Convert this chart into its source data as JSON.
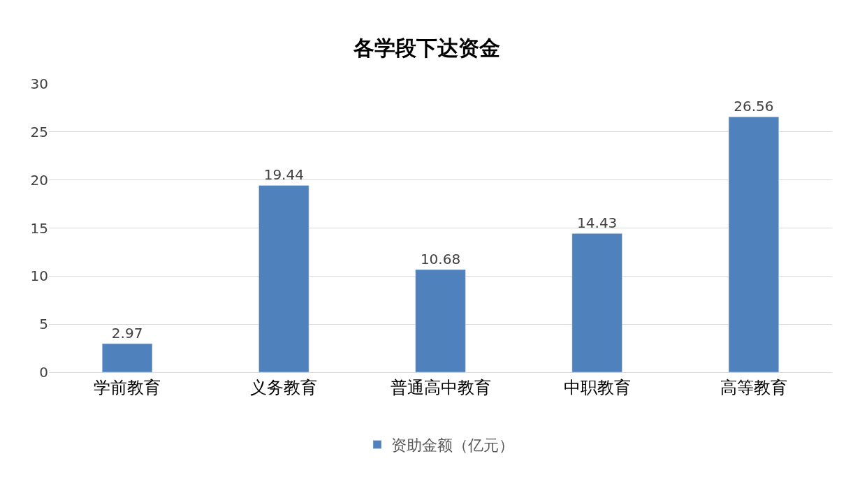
{
  "chart_data": {
    "type": "bar",
    "title": "各学段下达资金",
    "categories": [
      "学前教育",
      "义务教育",
      "普通高中教育",
      "中职教育",
      "高等教育"
    ],
    "series": [
      {
        "name": "资助金额（亿元）",
        "color": "#4f81bd",
        "values": [
          2.97,
          19.44,
          10.68,
          14.43,
          26.56
        ]
      }
    ],
    "ylim": [
      0,
      30
    ],
    "yticks": [
      0,
      5,
      10,
      15,
      20,
      25,
      30
    ],
    "grid": "y",
    "legend": "bottom",
    "data_labels": true
  }
}
